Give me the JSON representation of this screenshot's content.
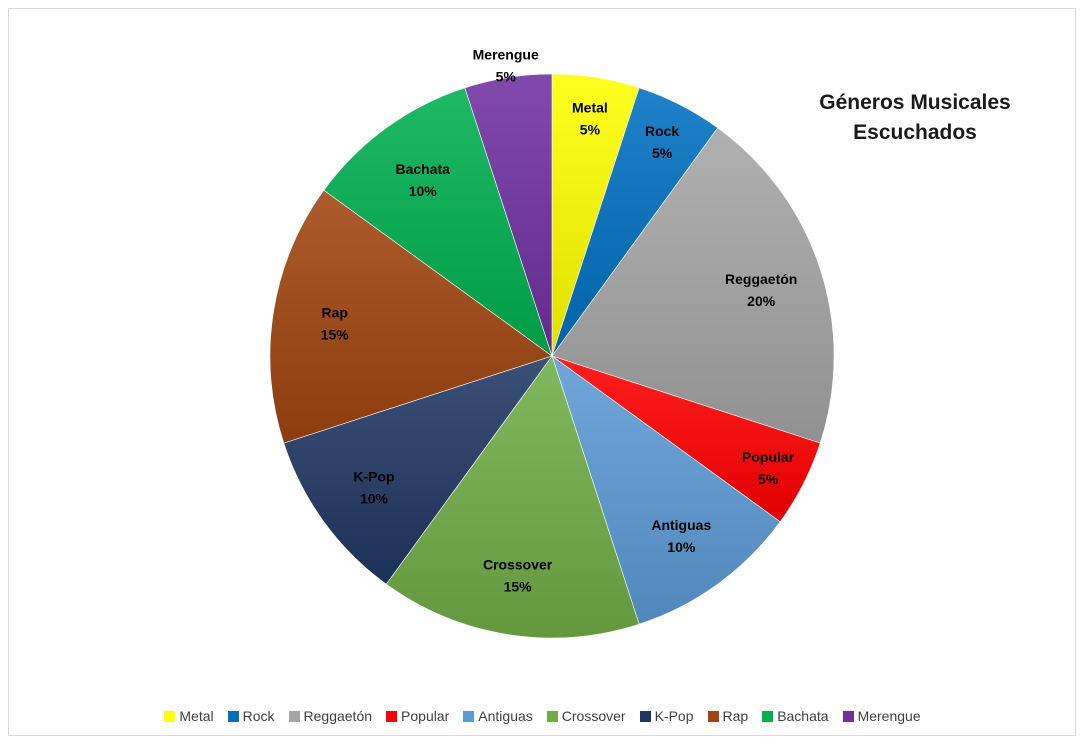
{
  "chart_data": {
    "type": "pie",
    "title": [
      "Géneros Musicales",
      "Escuchados"
    ],
    "start_angle_deg": 0,
    "direction": "clockwise",
    "legend_position": "bottom",
    "slices": [
      {
        "name": "Metal",
        "value": 5,
        "label": "5%",
        "color": "#ffff00"
      },
      {
        "name": "Rock",
        "value": 5,
        "label": "5%",
        "color": "#0070c0"
      },
      {
        "name": "Reggaetón",
        "value": 20,
        "label": "20%",
        "color": "#a5a5a5"
      },
      {
        "name": "Popular",
        "value": 5,
        "label": "5%",
        "color": "#ff0000"
      },
      {
        "name": "Antiguas",
        "value": 10,
        "label": "10%",
        "color": "#5b9bd5"
      },
      {
        "name": "Crossover",
        "value": 15,
        "label": "15%",
        "color": "#70ad47"
      },
      {
        "name": "K-Pop",
        "value": 10,
        "label": "10%",
        "color": "#203864"
      },
      {
        "name": "Rap",
        "value": 15,
        "label": "15%",
        "color": "#a0450f"
      },
      {
        "name": "Bachata",
        "value": 10,
        "label": "10%",
        "color": "#00b050"
      },
      {
        "name": "Merengue",
        "value": 5,
        "label": "5%",
        "color": "#7030a0"
      }
    ]
  }
}
